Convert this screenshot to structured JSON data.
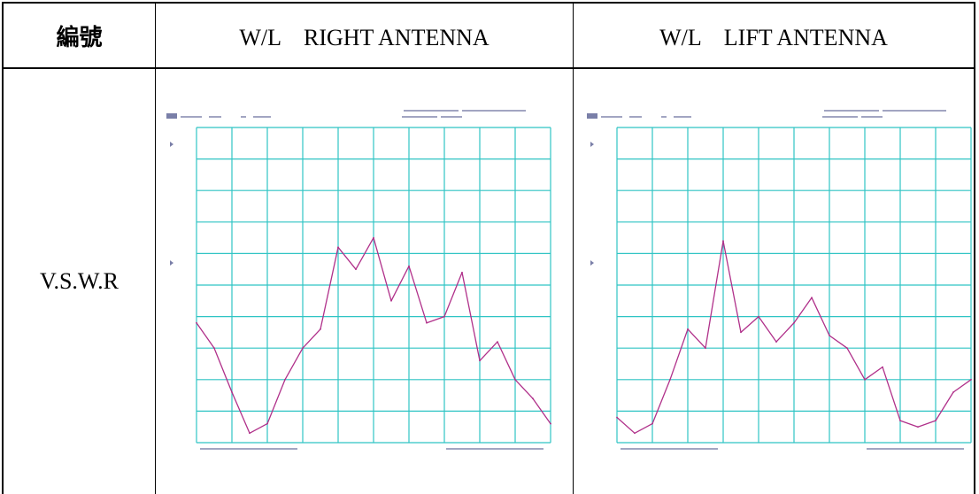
{
  "table": {
    "header": {
      "col1": "編號",
      "col2": "W/L　RIGHT ANTENNA",
      "col3": "W/L　LIFT ANTENNA"
    },
    "row_label": "V.S.W.R"
  },
  "colors": {
    "grid": "#2fc4c4",
    "trace": "#b0308a",
    "text": "#7a7fa8"
  },
  "chart_data": [
    {
      "type": "line",
      "title": "",
      "xlabel": "",
      "ylabel": "",
      "grid": true,
      "grid_divisions": {
        "x": 10,
        "y": 10
      },
      "ylim": [
        0,
        10
      ],
      "x": [
        0,
        0.5,
        1,
        1.5,
        2,
        2.5,
        3,
        3.5,
        4,
        4.5,
        5,
        5.5,
        6,
        6.5,
        7,
        7.5,
        8,
        8.5,
        9,
        9.5,
        10
      ],
      "series": [
        {
          "values": [
            3.8,
            3.0,
            1.6,
            0.3,
            0.6,
            2.0,
            3.0,
            3.6,
            6.2,
            5.5,
            6.5,
            4.5,
            5.6,
            3.8,
            4.0,
            5.4,
            2.6,
            3.2,
            2.0,
            1.4,
            0.6
          ]
        }
      ]
    },
    {
      "type": "line",
      "title": "",
      "xlabel": "",
      "ylabel": "",
      "grid": true,
      "grid_divisions": {
        "x": 10,
        "y": 10
      },
      "ylim": [
        0,
        10
      ],
      "x": [
        0,
        0.5,
        1,
        1.5,
        2,
        2.5,
        3,
        3.5,
        4,
        4.5,
        5,
        5.5,
        6,
        6.5,
        7,
        7.5,
        8,
        8.5,
        9,
        9.5,
        10
      ],
      "series": [
        {
          "values": [
            0.8,
            0.3,
            0.6,
            2.0,
            3.6,
            3.0,
            6.4,
            3.5,
            4.0,
            3.2,
            3.8,
            4.6,
            3.4,
            3.0,
            2.0,
            2.4,
            0.7,
            0.5,
            0.7,
            1.6,
            2.0
          ]
        }
      ]
    }
  ]
}
